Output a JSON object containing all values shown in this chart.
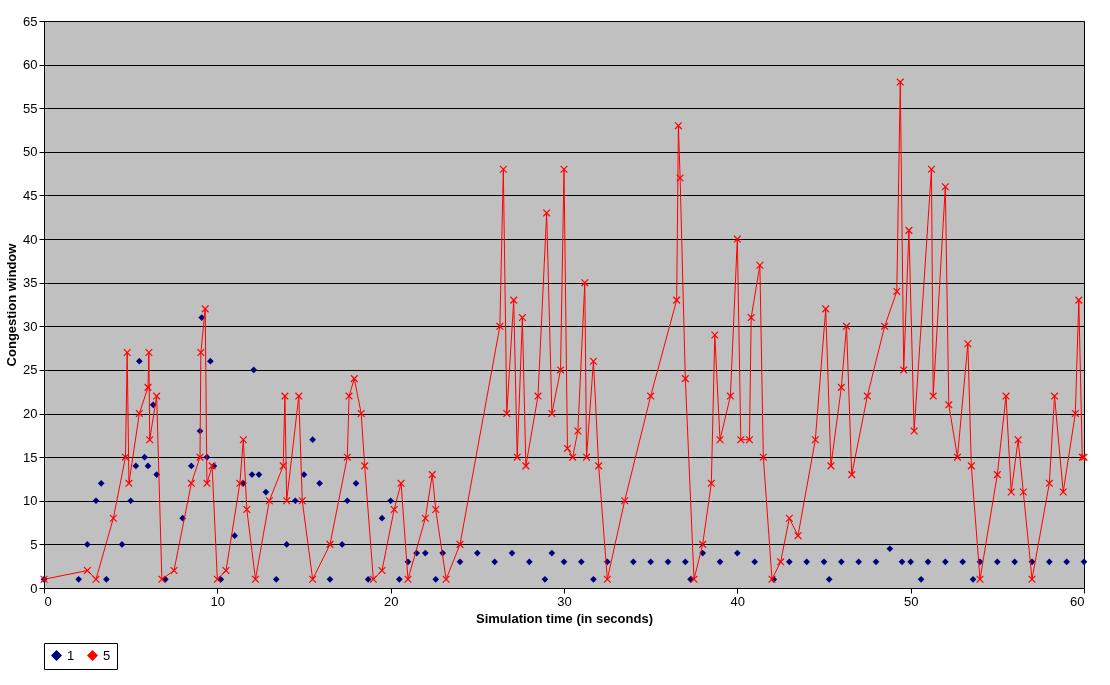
{
  "chart_data": {
    "type": "line",
    "xlabel": "Simulation time (in seconds)",
    "ylabel": "Congestion window",
    "xlim": [
      0,
      60
    ],
    "xticks": [
      0,
      10,
      20,
      30,
      40,
      50,
      60
    ],
    "ylim": [
      0,
      65
    ],
    "yticks": [
      0,
      5,
      10,
      15,
      20,
      25,
      30,
      35,
      40,
      45,
      50,
      55,
      60,
      65
    ],
    "grid": "y",
    "legend": "bottom",
    "series": [
      {
        "name": "1",
        "type": "scatter",
        "marker": "diamond",
        "color": "#000080",
        "x": [
          0,
          2,
          2.5,
          3,
          3.3,
          3.6,
          4.5,
          5,
          5.3,
          5.5,
          5.8,
          6,
          6.3,
          6.5,
          7,
          8,
          8.5,
          9,
          9.1,
          9.4,
          9.6,
          9.8,
          10.2,
          11,
          11.5,
          12,
          12.1,
          12.4,
          12.8,
          13.4,
          14,
          14.5,
          15,
          15.5,
          15.9,
          16.5,
          17.2,
          17.5,
          18,
          18.7,
          19.5,
          20,
          20.5,
          21,
          21.5,
          22,
          22.6,
          23,
          24,
          25,
          26,
          27,
          28,
          28.9,
          29.3,
          30,
          31,
          31.7,
          32.5,
          34,
          35,
          36,
          37,
          37.3,
          38,
          39,
          40,
          41,
          42.1,
          43,
          44,
          45,
          45.3,
          46,
          47,
          48,
          48.8,
          49.5,
          50,
          50.6,
          51,
          52,
          53,
          53.6,
          54,
          55,
          56,
          57,
          58,
          59,
          60
        ],
        "values": [
          1,
          1,
          5,
          10,
          12,
          1,
          5,
          10,
          14,
          26,
          15,
          14,
          21,
          13,
          1,
          8,
          14,
          18,
          31,
          15,
          26,
          14,
          1,
          6,
          12,
          13,
          25,
          13,
          11,
          1,
          5,
          10,
          13,
          17,
          12,
          1,
          5,
          10,
          12,
          1,
          8,
          10,
          1,
          3,
          4,
          4,
          1,
          4,
          3,
          4,
          3,
          4,
          3,
          1,
          4,
          3,
          3,
          1,
          3,
          3,
          3,
          3,
          3,
          1,
          4,
          3,
          4,
          3,
          1,
          3,
          3,
          3,
          1,
          3,
          3,
          3,
          4.5,
          3,
          3,
          1,
          3,
          3,
          3,
          1,
          3,
          3,
          3,
          3,
          3,
          3,
          3
        ]
      },
      {
        "name": "5",
        "type": "line",
        "marker": "cross",
        "line_style": "solid",
        "color": "#ff0000",
        "x": [
          0,
          2.5,
          3,
          4,
          4.7,
          4.8,
          4.9,
          5.5,
          6,
          6.05,
          6.1,
          6.5,
          6.8,
          7.5,
          8.5,
          9,
          9.05,
          9.3,
          9.4,
          9.7,
          10,
          10.5,
          11.3,
          11.5,
          11.7,
          12.2,
          13,
          13.8,
          13.9,
          14,
          14.7,
          14.9,
          15.5,
          16.5,
          17.5,
          17.6,
          17.9,
          18.3,
          18.5,
          19,
          19.5,
          20.2,
          20.6,
          21,
          22,
          22.4,
          22.6,
          23.2,
          24,
          26.3,
          26.5,
          26.7,
          27.1,
          27.3,
          27.6,
          27.8,
          28.5,
          29,
          29.3,
          29.8,
          30,
          30.2,
          30.5,
          30.8,
          31.2,
          31.3,
          31.7,
          32,
          32.5,
          33.5,
          35,
          36.5,
          36.6,
          36.7,
          37,
          37.5,
          38,
          38.5,
          38.7,
          39,
          39.6,
          40,
          40.2,
          40.7,
          40.8,
          41.3,
          41.5,
          42,
          42.5,
          43,
          43.5,
          44.5,
          45.1,
          45.4,
          46,
          46.3,
          46.6,
          47.5,
          48.5,
          49.2,
          49.4,
          49.6,
          49.9,
          50.2,
          51.2,
          51.3,
          52,
          52.2,
          52.7,
          53.3,
          53.5,
          54,
          55,
          55.5,
          55.8,
          56.2,
          56.5,
          57,
          58,
          58.3,
          58.8,
          59.5,
          59.7,
          59.9,
          60
        ],
        "values": [
          1,
          2,
          1,
          8,
          15,
          27,
          12,
          20,
          23,
          27,
          17,
          22,
          1,
          2,
          12,
          15,
          27,
          32,
          12,
          14,
          1,
          2,
          12,
          17,
          9,
          1,
          10,
          14,
          22,
          10,
          22,
          10,
          1,
          5,
          15,
          22,
          24,
          20,
          14,
          1,
          2,
          9,
          12,
          1,
          8,
          13,
          9,
          1,
          5,
          30,
          48,
          20,
          33,
          15,
          31,
          14,
          22,
          43,
          20,
          25,
          48,
          16,
          15,
          18,
          35,
          15,
          26,
          14,
          1,
          10,
          22,
          33,
          53,
          47,
          24,
          1,
          5,
          12,
          29,
          17,
          22,
          40,
          17,
          17,
          31,
          37,
          15,
          1,
          3,
          8,
          6,
          17,
          32,
          14,
          23,
          30,
          13,
          22,
          30,
          34,
          58,
          25,
          41,
          18,
          48,
          22,
          46,
          21,
          15,
          28,
          14,
          1,
          13,
          22,
          11,
          17,
          11,
          1,
          12,
          22,
          11,
          20,
          33,
          15,
          15
        ]
      }
    ]
  }
}
